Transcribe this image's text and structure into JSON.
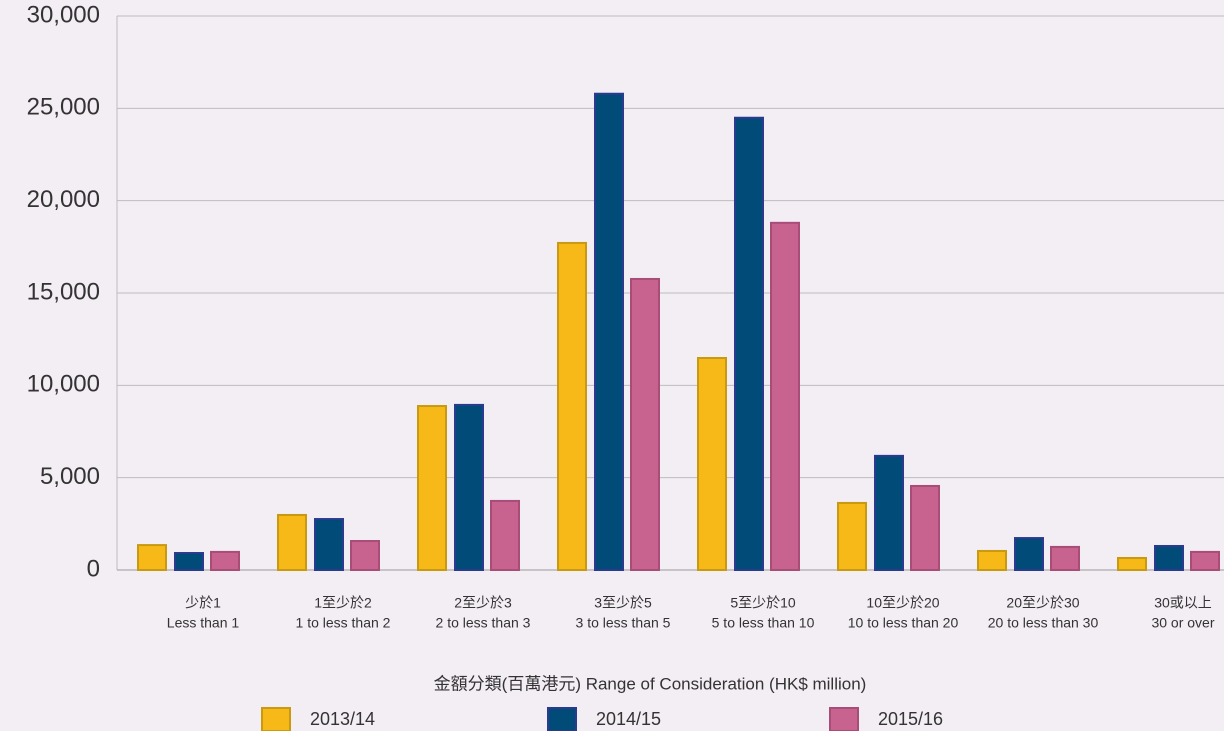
{
  "chart_data": {
    "type": "bar",
    "x_label": "金額分類(百萬港元) Range of Consideration (HK$ million)",
    "categories": [
      [
        "少於1",
        "Less than 1"
      ],
      [
        "1至少於2",
        "1 to less than 2"
      ],
      [
        "2至少於3",
        "2 to less than 3"
      ],
      [
        "3至少於5",
        "3 to less than 5"
      ],
      [
        "5至少於10",
        "5 to less than 10"
      ],
      [
        "10至少於20",
        "10 to less than 20"
      ],
      [
        "20至少於30",
        "20 to less than 30"
      ],
      [
        "30或以上",
        "30 or over"
      ]
    ],
    "series": [
      {
        "name": "2013/14",
        "color": "#f7b918",
        "values": [
          1350,
          2980,
          8880,
          17710,
          11480,
          3630,
          1030,
          650
        ]
      },
      {
        "name": "2014/15",
        "color": "#004b78",
        "values": [
          920,
          2760,
          8940,
          25790,
          24490,
          6180,
          1730,
          1300
        ]
      },
      {
        "name": "2015/16",
        "color": "#c8628f",
        "values": [
          980,
          1570,
          3740,
          15760,
          18800,
          4550,
          1250,
          980
        ]
      }
    ],
    "ylim": [
      0,
      30000
    ],
    "yticks": [
      0,
      {
        "value": 5000,
        "label": "5,000"
      },
      {
        "value": 10000,
        "label": "10,000"
      },
      {
        "value": 15000,
        "label": "15,000"
      },
      {
        "value": 20000,
        "label": "20,000"
      },
      {
        "value": 25000,
        "label": "25,000"
      },
      {
        "value": 30000,
        "label": "30,000"
      }
    ],
    "grid": true
  }
}
